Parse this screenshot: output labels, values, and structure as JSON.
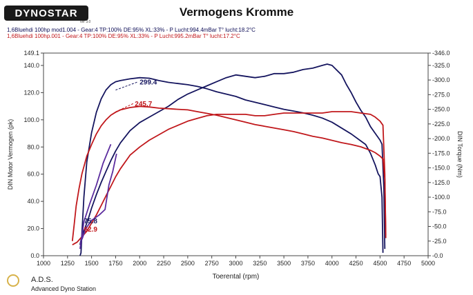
{
  "header": {
    "logo_text": "DYNOSTAR",
    "logo_sub": "ver 3.0",
    "title": "Vermogens Kromme",
    "run1": "1,6Bluehdi 100hp mod1.004 - Gear:4 TP:100% DE:95% XL:33%    - P Lucht:994.4mBar T° lucht:18.2°C",
    "run2": "1,6Bluehdi 100hp.001 - Gear:4 TP:100% DE:95% XL:33%    - P Lucht:995.2mBar T° lucht:17.2°C"
  },
  "footer": {
    "abbr": "A.D.S.",
    "full": "Advanced Dyno Station"
  },
  "chart_data": {
    "type": "line",
    "title": "Vermogens Kromme",
    "xlabel": "Toerental (rpm)",
    "ylabel_left": "DIN Motor Vermogen (pk)",
    "ylabel_right": "DIN Torque (Nm)",
    "xlim": [
      1000,
      5000
    ],
    "ylim_left": [
      0,
      149.1
    ],
    "ylim_right": [
      0,
      346.0
    ],
    "x_ticks": [
      1000,
      1250,
      1500,
      1750,
      2000,
      2250,
      2500,
      2750,
      3000,
      3250,
      3500,
      3750,
      4000,
      4250,
      4500,
      4750,
      5000
    ],
    "y_left_ticks": [
      0.0,
      20.0,
      40.0,
      60.0,
      80.0,
      100.0,
      120.0,
      140.0,
      149.1
    ],
    "y_right_ticks": [
      0.0,
      25.0,
      50.0,
      75.0,
      100.0,
      125.0,
      150.0,
      175.0,
      200.0,
      225.0,
      250.0,
      275.0,
      300.0,
      325.0,
      346.0
    ],
    "colors": {
      "run1": "#14145e",
      "run2": "#c0171b",
      "spool": "#5b2c9e"
    },
    "series": [
      {
        "name": "run1 torque",
        "color": "#14145e",
        "axis": "right",
        "points": [
          [
            1380,
            0
          ],
          [
            1390,
            5
          ],
          [
            1400,
            40
          ],
          [
            1420,
            100
          ],
          [
            1450,
            160
          ],
          [
            1500,
            210
          ],
          [
            1550,
            245
          ],
          [
            1600,
            268
          ],
          [
            1650,
            283
          ],
          [
            1700,
            292
          ],
          [
            1750,
            297
          ],
          [
            1800,
            299
          ],
          [
            1900,
            302
          ],
          [
            2000,
            304
          ],
          [
            2100,
            303
          ],
          [
            2200,
            299
          ],
          [
            2300,
            296
          ],
          [
            2400,
            294
          ],
          [
            2500,
            292
          ],
          [
            2600,
            289
          ],
          [
            2700,
            285
          ],
          [
            2800,
            280
          ],
          [
            2900,
            276
          ],
          [
            3000,
            272
          ],
          [
            3100,
            266
          ],
          [
            3200,
            262
          ],
          [
            3300,
            258
          ],
          [
            3400,
            254
          ],
          [
            3500,
            250
          ],
          [
            3600,
            247
          ],
          [
            3700,
            244
          ],
          [
            3800,
            240
          ],
          [
            3900,
            235
          ],
          [
            4000,
            228
          ],
          [
            4100,
            218
          ],
          [
            4200,
            208
          ],
          [
            4300,
            196
          ],
          [
            4350,
            190
          ],
          [
            4400,
            175
          ],
          [
            4450,
            155
          ],
          [
            4480,
            140
          ],
          [
            4500,
            135
          ],
          [
            4520,
            100
          ],
          [
            4530,
            5
          ]
        ]
      },
      {
        "name": "run1 power",
        "color": "#14145e",
        "axis": "left",
        "points": [
          [
            1380,
            8
          ],
          [
            1400,
            15
          ],
          [
            1430,
            20
          ],
          [
            1470,
            28
          ],
          [
            1500,
            35
          ],
          [
            1550,
            45
          ],
          [
            1600,
            54
          ],
          [
            1650,
            62
          ],
          [
            1700,
            70
          ],
          [
            1750,
            77
          ],
          [
            1800,
            83
          ],
          [
            1900,
            92
          ],
          [
            2000,
            98
          ],
          [
            2100,
            102
          ],
          [
            2200,
            106
          ],
          [
            2300,
            110
          ],
          [
            2400,
            115
          ],
          [
            2500,
            119
          ],
          [
            2600,
            122
          ],
          [
            2700,
            125
          ],
          [
            2800,
            128
          ],
          [
            2900,
            131
          ],
          [
            3000,
            133
          ],
          [
            3100,
            132
          ],
          [
            3200,
            131
          ],
          [
            3300,
            132
          ],
          [
            3400,
            134
          ],
          [
            3500,
            134
          ],
          [
            3600,
            135
          ],
          [
            3700,
            137
          ],
          [
            3800,
            138
          ],
          [
            3900,
            140
          ],
          [
            3950,
            141
          ],
          [
            4000,
            140
          ],
          [
            4100,
            133
          ],
          [
            4150,
            126
          ],
          [
            4200,
            120
          ],
          [
            4250,
            113
          ],
          [
            4300,
            107
          ],
          [
            4350,
            102
          ],
          [
            4400,
            95
          ],
          [
            4450,
            90
          ],
          [
            4500,
            85
          ],
          [
            4520,
            82
          ],
          [
            4540,
            50
          ],
          [
            4550,
            5
          ]
        ]
      },
      {
        "name": "run2 torque",
        "color": "#c0171b",
        "axis": "right",
        "points": [
          [
            1300,
            25
          ],
          [
            1310,
            40
          ],
          [
            1320,
            55
          ],
          [
            1340,
            85
          ],
          [
            1370,
            115
          ],
          [
            1400,
            140
          ],
          [
            1450,
            170
          ],
          [
            1500,
            190
          ],
          [
            1550,
            208
          ],
          [
            1600,
            222
          ],
          [
            1650,
            232
          ],
          [
            1700,
            240
          ],
          [
            1750,
            245
          ],
          [
            1800,
            249
          ],
          [
            1900,
            253
          ],
          [
            2000,
            255
          ],
          [
            2100,
            254
          ],
          [
            2200,
            252
          ],
          [
            2300,
            251
          ],
          [
            2400,
            250
          ],
          [
            2500,
            249
          ],
          [
            2600,
            246
          ],
          [
            2700,
            243
          ],
          [
            2800,
            240
          ],
          [
            2900,
            236
          ],
          [
            3000,
            232
          ],
          [
            3100,
            228
          ],
          [
            3200,
            224
          ],
          [
            3300,
            221
          ],
          [
            3400,
            218
          ],
          [
            3500,
            215
          ],
          [
            3600,
            212
          ],
          [
            3700,
            208
          ],
          [
            3800,
            204
          ],
          [
            3900,
            201
          ],
          [
            4000,
            197
          ],
          [
            4100,
            193
          ],
          [
            4200,
            190
          ],
          [
            4300,
            186
          ],
          [
            4400,
            180
          ],
          [
            4450,
            176
          ],
          [
            4500,
            170
          ],
          [
            4530,
            165
          ],
          [
            4550,
            130
          ],
          [
            4560,
            30
          ]
        ]
      },
      {
        "name": "run2 power",
        "color": "#c0171b",
        "axis": "left",
        "points": [
          [
            1300,
            8
          ],
          [
            1350,
            10
          ],
          [
            1400,
            14
          ],
          [
            1450,
            18
          ],
          [
            1500,
            24
          ],
          [
            1550,
            30
          ],
          [
            1600,
            37
          ],
          [
            1650,
            44
          ],
          [
            1700,
            51
          ],
          [
            1750,
            58
          ],
          [
            1800,
            64
          ],
          [
            1900,
            74
          ],
          [
            2000,
            80
          ],
          [
            2100,
            85
          ],
          [
            2200,
            89
          ],
          [
            2300,
            93
          ],
          [
            2400,
            96
          ],
          [
            2500,
            99
          ],
          [
            2600,
            101
          ],
          [
            2700,
            103
          ],
          [
            2800,
            104
          ],
          [
            2900,
            104
          ],
          [
            3000,
            104
          ],
          [
            3100,
            104
          ],
          [
            3200,
            103
          ],
          [
            3300,
            103
          ],
          [
            3400,
            104
          ],
          [
            3500,
            105
          ],
          [
            3600,
            105
          ],
          [
            3700,
            105
          ],
          [
            3800,
            105
          ],
          [
            3900,
            105
          ],
          [
            4000,
            106
          ],
          [
            4100,
            106
          ],
          [
            4200,
            106
          ],
          [
            4300,
            105
          ],
          [
            4400,
            104
          ],
          [
            4450,
            102
          ],
          [
            4500,
            99
          ],
          [
            4530,
            96
          ],
          [
            4550,
            60
          ],
          [
            4560,
            15
          ]
        ]
      },
      {
        "name": "run1 spool",
        "color": "#5b2c9e",
        "axis": "left",
        "points": [
          [
            1380,
            5
          ],
          [
            1420,
            25
          ],
          [
            1480,
            38
          ],
          [
            1550,
            52
          ],
          [
            1620,
            68
          ],
          [
            1700,
            82
          ]
        ]
      },
      {
        "name": "run2 spool",
        "color": "#5b2c9e",
        "axis": "left",
        "points": [
          [
            1400,
            12
          ],
          [
            1440,
            20
          ],
          [
            1500,
            26
          ],
          [
            1580,
            30
          ],
          [
            1640,
            34
          ],
          [
            1680,
            52
          ],
          [
            1720,
            62
          ],
          [
            1760,
            75
          ]
        ]
      }
    ],
    "annotations": [
      {
        "label": "299.4",
        "color": "#14145e",
        "x": 2000,
        "y": 128.0,
        "axis": "left",
        "from_rpm": 1750
      },
      {
        "label": "245.7",
        "color": "#c0171b",
        "x": 1950,
        "y": 112.0,
        "axis": "left",
        "from_rpm": 1750
      },
      {
        "label": "75.8",
        "color": "#14145e",
        "x": 1420,
        "y": 25.8,
        "axis": "left",
        "from_rpm": 1420
      },
      {
        "label": "62.9",
        "color": "#c0171b",
        "x": 1420,
        "y": 19.7,
        "axis": "left",
        "from_rpm": 1420
      }
    ]
  }
}
